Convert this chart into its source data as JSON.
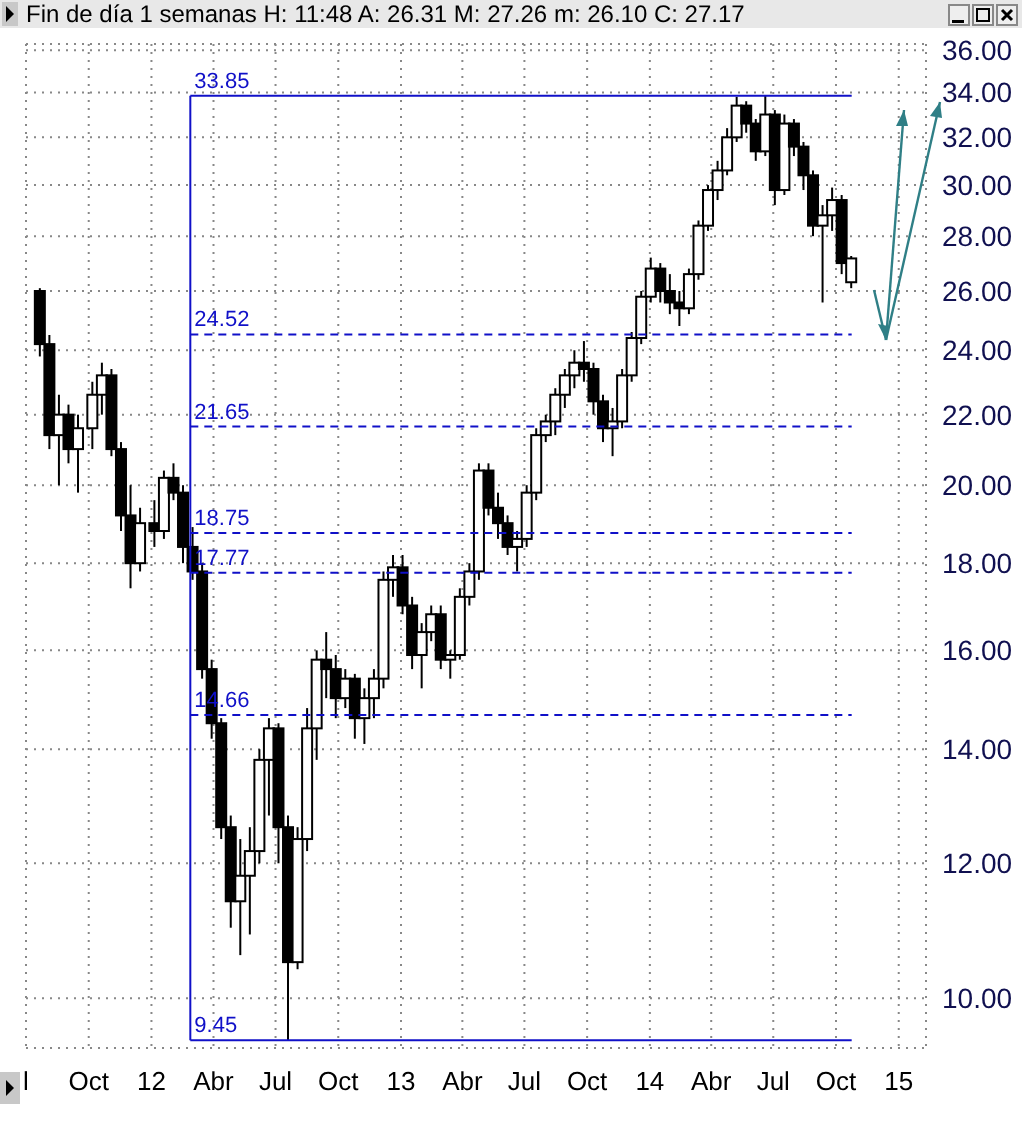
{
  "chart_data": {
    "type": "candlestick",
    "title": "Fin de día 1 semanas  H: 11:48  A: 26.31  M: 27.26  m: 26.10  C: 27.17",
    "x": [
      "2011-07-22",
      "2011-08-05",
      "2011-08-19",
      "2011-09-02",
      "2011-09-16",
      "2011-10-07",
      "2011-10-21",
      "2011-11-04",
      "2011-11-18",
      "2011-12-02",
      "2011-12-16",
      "2012-01-06",
      "2012-01-20",
      "2012-02-03",
      "2012-02-17",
      "2012-03-02",
      "2012-03-16",
      "2012-03-30",
      "2012-04-13",
      "2012-04-27",
      "2012-05-11",
      "2012-05-25",
      "2012-06-08",
      "2012-06-22",
      "2012-07-06",
      "2012-07-20",
      "2012-08-03",
      "2012-08-17",
      "2012-08-31",
      "2012-09-14",
      "2012-09-28",
      "2012-10-12",
      "2012-10-26",
      "2012-11-09",
      "2012-11-23",
      "2012-12-07",
      "2012-12-21",
      "2013-01-04",
      "2013-01-18",
      "2013-02-01",
      "2013-02-15",
      "2013-03-01",
      "2013-03-15",
      "2013-03-29",
      "2013-04-12",
      "2013-04-26",
      "2013-05-10",
      "2013-05-24",
      "2013-06-07",
      "2013-06-21",
      "2013-07-05",
      "2013-07-19",
      "2013-08-02",
      "2013-08-16",
      "2013-08-30",
      "2013-09-13",
      "2013-09-27",
      "2013-10-11",
      "2013-10-25",
      "2013-11-08",
      "2013-11-22",
      "2013-12-06",
      "2013-12-20",
      "2014-01-03",
      "2014-01-17",
      "2014-01-31",
      "2014-02-14",
      "2014-02-28",
      "2014-03-14",
      "2014-03-28",
      "2014-04-11",
      "2014-04-25",
      "2014-05-09",
      "2014-05-23",
      "2014-06-06",
      "2014-06-20",
      "2014-07-04",
      "2014-07-18",
      "2014-08-01",
      "2014-08-15",
      "2014-08-29",
      "2014-09-12",
      "2014-09-26",
      "2014-10-10",
      "2014-10-24"
    ],
    "ohlc": [
      [
        26.0,
        26.1,
        23.8,
        24.2
      ],
      [
        24.2,
        24.5,
        21.0,
        21.4
      ],
      [
        21.4,
        22.6,
        20.0,
        22.0
      ],
      [
        22.0,
        22.3,
        20.6,
        21.0
      ],
      [
        21.0,
        22.0,
        19.8,
        21.6
      ],
      [
        21.6,
        23.0,
        21.0,
        22.6
      ],
      [
        22.6,
        23.6,
        22.0,
        23.2
      ],
      [
        23.2,
        23.4,
        20.8,
        21.0
      ],
      [
        21.0,
        21.2,
        18.8,
        19.2
      ],
      [
        19.2,
        20.0,
        17.4,
        18.0
      ],
      [
        18.0,
        19.4,
        17.8,
        19.0
      ],
      [
        19.0,
        19.6,
        18.4,
        18.8
      ],
      [
        18.8,
        20.4,
        18.6,
        20.2
      ],
      [
        20.2,
        20.6,
        19.6,
        19.8
      ],
      [
        19.8,
        20.0,
        18.0,
        18.4
      ],
      [
        18.4,
        18.9,
        17.6,
        17.8
      ],
      [
        17.8,
        18.0,
        15.4,
        15.6
      ],
      [
        15.6,
        15.8,
        14.2,
        14.5
      ],
      [
        14.5,
        14.6,
        12.4,
        12.6
      ],
      [
        12.6,
        12.8,
        11.0,
        11.4
      ],
      [
        11.4,
        12.4,
        10.6,
        11.8
      ],
      [
        11.8,
        12.6,
        10.9,
        12.2
      ],
      [
        12.2,
        14.0,
        12.0,
        13.8
      ],
      [
        13.8,
        14.6,
        12.8,
        14.4
      ],
      [
        14.4,
        14.5,
        12.0,
        12.6
      ],
      [
        12.6,
        12.8,
        9.45,
        10.5
      ],
      [
        10.5,
        12.6,
        10.4,
        12.4
      ],
      [
        12.4,
        14.8,
        12.2,
        14.4
      ],
      [
        14.4,
        16.0,
        13.8,
        15.8
      ],
      [
        15.8,
        16.4,
        15.0,
        15.6
      ],
      [
        15.6,
        15.9,
        14.6,
        15.0
      ],
      [
        15.0,
        15.6,
        14.8,
        15.4
      ],
      [
        15.4,
        15.5,
        14.2,
        14.6
      ],
      [
        14.6,
        15.2,
        14.1,
        15.0
      ],
      [
        15.0,
        15.6,
        14.6,
        15.4
      ],
      [
        15.4,
        17.8,
        15.2,
        17.6
      ],
      [
        17.6,
        18.2,
        17.2,
        17.9
      ],
      [
        17.9,
        18.2,
        16.8,
        17.0
      ],
      [
        17.0,
        17.2,
        15.6,
        15.9
      ],
      [
        15.9,
        16.6,
        15.2,
        16.4
      ],
      [
        16.4,
        17.0,
        16.2,
        16.8
      ],
      [
        16.8,
        17.0,
        15.6,
        15.8
      ],
      [
        15.8,
        16.0,
        15.4,
        15.9
      ],
      [
        15.9,
        17.4,
        15.8,
        17.2
      ],
      [
        17.2,
        18.0,
        17.0,
        17.8
      ],
      [
        17.8,
        20.6,
        17.6,
        20.4
      ],
      [
        20.4,
        20.6,
        19.2,
        19.4
      ],
      [
        19.4,
        19.8,
        18.6,
        19.0
      ],
      [
        19.0,
        19.2,
        18.2,
        18.4
      ],
      [
        18.4,
        18.8,
        17.8,
        18.6
      ],
      [
        18.6,
        20.0,
        18.4,
        19.8
      ],
      [
        19.8,
        21.6,
        19.6,
        21.4
      ],
      [
        21.4,
        22.0,
        21.2,
        21.8
      ],
      [
        21.8,
        22.8,
        21.4,
        22.6
      ],
      [
        22.6,
        23.4,
        22.2,
        23.2
      ],
      [
        23.2,
        24.0,
        22.8,
        23.6
      ],
      [
        23.6,
        24.3,
        23.0,
        23.4
      ],
      [
        23.4,
        23.6,
        22.0,
        22.4
      ],
      [
        22.4,
        22.6,
        21.2,
        21.6
      ],
      [
        21.6,
        22.2,
        20.8,
        21.8
      ],
      [
        21.8,
        23.4,
        21.6,
        23.2
      ],
      [
        23.2,
        24.6,
        23.0,
        24.4
      ],
      [
        24.4,
        26.0,
        24.2,
        25.8
      ],
      [
        25.8,
        27.2,
        25.6,
        26.8
      ],
      [
        26.8,
        27.0,
        25.6,
        26.0
      ],
      [
        26.0,
        26.6,
        25.2,
        25.6
      ],
      [
        25.6,
        26.0,
        24.8,
        25.4
      ],
      [
        25.4,
        26.8,
        25.2,
        26.6
      ],
      [
        26.6,
        28.6,
        26.4,
        28.4
      ],
      [
        28.4,
        30.0,
        28.2,
        29.8
      ],
      [
        29.8,
        31.0,
        29.4,
        30.6
      ],
      [
        30.6,
        32.4,
        30.4,
        32.0
      ],
      [
        32.0,
        33.8,
        31.8,
        33.4
      ],
      [
        33.4,
        33.6,
        32.2,
        32.6
      ],
      [
        32.6,
        32.8,
        31.0,
        31.4
      ],
      [
        31.4,
        33.85,
        31.2,
        33.0
      ],
      [
        33.0,
        33.2,
        29.2,
        29.8
      ],
      [
        29.8,
        33.0,
        29.6,
        32.6
      ],
      [
        32.6,
        32.8,
        31.2,
        31.6
      ],
      [
        31.6,
        31.8,
        29.8,
        30.4
      ],
      [
        30.4,
        30.6,
        28.0,
        28.4
      ],
      [
        28.4,
        29.2,
        25.6,
        28.8
      ],
      [
        28.8,
        29.9,
        28.2,
        29.4
      ],
      [
        29.4,
        29.6,
        26.6,
        27.0
      ],
      [
        26.31,
        27.26,
        26.1,
        27.17
      ]
    ],
    "color": "#000000",
    "log": "y",
    "xlim": [
      "2011-07-01",
      "2015-02-10"
    ],
    "xticks": [
      {
        "value": "2011-07-01",
        "label": "l"
      },
      {
        "value": "2011-10-01",
        "label": "Oct"
      },
      {
        "value": "2012-01-01",
        "label": "12"
      },
      {
        "value": "2012-04-01",
        "label": "Abr"
      },
      {
        "value": "2012-07-01",
        "label": "Jul"
      },
      {
        "value": "2012-10-01",
        "label": "Oct"
      },
      {
        "value": "2013-01-01",
        "label": "13"
      },
      {
        "value": "2013-04-01",
        "label": "Abr"
      },
      {
        "value": "2013-07-01",
        "label": "Jul"
      },
      {
        "value": "2013-10-01",
        "label": "Oct"
      },
      {
        "value": "2014-01-01",
        "label": "14"
      },
      {
        "value": "2014-04-01",
        "label": "Abr"
      },
      {
        "value": "2014-07-01",
        "label": "Jul"
      },
      {
        "value": "2014-10-01",
        "label": "Oct"
      },
      {
        "value": "2015-01-01",
        "label": "15"
      }
    ],
    "ylim": [
      9.35,
      36.3
    ],
    "yticks": [
      {
        "value": 10,
        "label": "10.00"
      },
      {
        "value": 12,
        "label": "12.00"
      },
      {
        "value": 14,
        "label": "14.00"
      },
      {
        "value": 16,
        "label": "16.00"
      },
      {
        "value": 18,
        "label": "18.00"
      },
      {
        "value": 20,
        "label": "20.00"
      },
      {
        "value": 22,
        "label": "22.00"
      },
      {
        "value": 24,
        "label": "24.00"
      },
      {
        "value": 26,
        "label": "26.00"
      },
      {
        "value": 28,
        "label": "28.00"
      },
      {
        "value": 30,
        "label": "30.00"
      },
      {
        "value": 32,
        "label": "32.00"
      },
      {
        "value": 34,
        "label": "34.00"
      },
      {
        "value": 36,
        "label": "36.00"
      }
    ],
    "grid": true,
    "ref_lines": [
      {
        "axis": "y",
        "value": 33.85,
        "label": "33.85",
        "color": "#1010c8",
        "line_style": "solid"
      },
      {
        "axis": "y",
        "value": 24.52,
        "label": "24.52",
        "color": "#1010c8",
        "line_style": "dashed"
      },
      {
        "axis": "y",
        "value": 21.65,
        "label": "21.65",
        "color": "#1010c8",
        "line_style": "dashed"
      },
      {
        "axis": "y",
        "value": 18.75,
        "label": "18.75",
        "color": "#1010c8",
        "line_style": "dashed"
      },
      {
        "axis": "y",
        "value": 17.77,
        "label": "17.77",
        "color": "#1010c8",
        "line_style": "dashed"
      },
      {
        "axis": "y",
        "value": 14.66,
        "label": "14.66",
        "color": "#1010c8",
        "line_style": "dashed"
      },
      {
        "axis": "y",
        "value": 9.45,
        "label": "9.45",
        "color": "#1010c8",
        "line_style": "solid"
      },
      {
        "axis": "x",
        "value": "2012-02-27",
        "color": "#1010c8",
        "line_style": "solid"
      }
    ]
  }
}
